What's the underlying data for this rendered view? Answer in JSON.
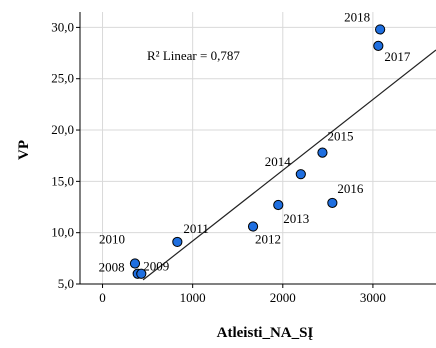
{
  "chart_data": {
    "type": "scatter",
    "title": "",
    "xlabel": "Atleisti_NA_SĮ",
    "ylabel": "VP",
    "xlim": [
      -250,
      3700
    ],
    "ylim": [
      5,
      31.5
    ],
    "xticks": [
      0,
      1000,
      2000,
      3000
    ],
    "xtick_labels": [
      "0",
      "1000",
      "2000",
      "3000"
    ],
    "yticks": [
      5,
      10,
      15,
      20,
      25,
      30
    ],
    "ytick_labels": [
      "5,0",
      "10,0",
      "15,0",
      "20,0",
      "25,0",
      "30,0"
    ],
    "grid": true,
    "points": [
      {
        "label": "2008",
        "x": 390,
        "y": 6.0
      },
      {
        "label": "2009",
        "x": 430,
        "y": 6.0
      },
      {
        "label": "2010",
        "x": 360,
        "y": 7.0
      },
      {
        "label": "2011",
        "x": 830,
        "y": 9.1
      },
      {
        "label": "2012",
        "x": 1670,
        "y": 10.6
      },
      {
        "label": "2013",
        "x": 1950,
        "y": 12.7
      },
      {
        "label": "2014",
        "x": 2200,
        "y": 15.7
      },
      {
        "label": "2015",
        "x": 2440,
        "y": 17.8
      },
      {
        "label": "2016",
        "x": 2550,
        "y": 12.9
      },
      {
        "label": "2017",
        "x": 3060,
        "y": 28.2
      },
      {
        "label": "2018",
        "x": 3080,
        "y": 29.8
      }
    ],
    "fit_line": {
      "x": [
        450,
        3700
      ],
      "y": [
        5.4,
        27.8
      ]
    },
    "annotation": "R² Linear = 0,787",
    "point_color": "#1f6fe0",
    "point_edge": "#000000",
    "grid_color": "#d9d9d9"
  }
}
